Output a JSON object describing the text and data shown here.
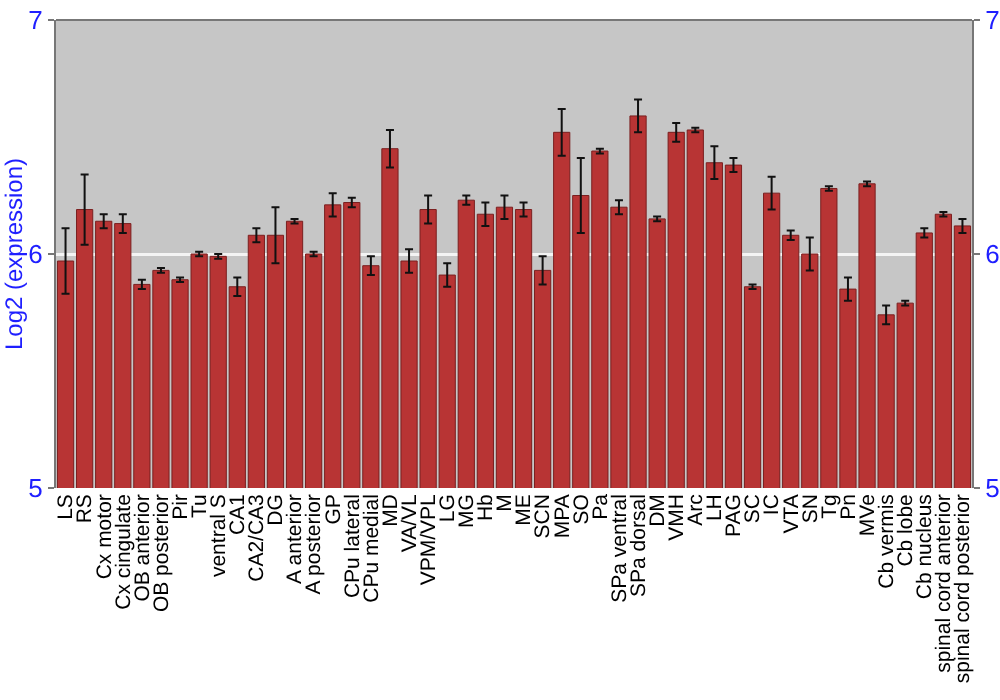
{
  "chart_data": {
    "type": "bar",
    "ylabel": "Log2 (expression)",
    "categories": [
      "LS",
      "RS",
      "Cx motor",
      "Cx cingulate",
      "OB anterior",
      "OB posterior",
      "Pir",
      "Tu",
      "ventral S",
      "CA1",
      "CA2/CA3",
      "DG",
      "A anterior",
      "A posterior",
      "GP",
      "CPu lateral",
      "CPu medial",
      "MD",
      "VA/VL",
      "VPM/VPL",
      "LG",
      "MG",
      "Hb",
      "M",
      "ME",
      "SCN",
      "MPA",
      "SO",
      "Pa",
      "SPa ventral",
      "SPa dorsal",
      "DM",
      "VMH",
      "Arc",
      "LH",
      "PAG",
      "SC",
      "IC",
      "VTA",
      "SN",
      "Tg",
      "Pn",
      "MVe",
      "Cb vermis",
      "Cb lobe",
      "Cb nucleus",
      "spinal cord anterior",
      "spinal cord posterior"
    ],
    "values": [
      5.97,
      6.19,
      6.14,
      6.13,
      5.87,
      5.93,
      5.89,
      6.0,
      5.99,
      5.86,
      6.08,
      6.08,
      6.14,
      6.0,
      6.21,
      6.22,
      5.95,
      6.45,
      5.97,
      6.19,
      5.91,
      6.23,
      6.17,
      6.2,
      6.19,
      5.93,
      6.52,
      6.25,
      6.44,
      6.2,
      6.59,
      6.15,
      6.52,
      6.53,
      6.39,
      6.38,
      5.86,
      6.26,
      6.08,
      6.0,
      6.28,
      5.85,
      6.3,
      5.74,
      5.79,
      6.09,
      6.17,
      6.12
    ],
    "errors": [
      0.14,
      0.15,
      0.03,
      0.04,
      0.02,
      0.01,
      0.01,
      0.01,
      0.01,
      0.04,
      0.03,
      0.12,
      0.01,
      0.01,
      0.05,
      0.02,
      0.04,
      0.08,
      0.05,
      0.06,
      0.05,
      0.02,
      0.05,
      0.05,
      0.03,
      0.06,
      0.1,
      0.16,
      0.01,
      0.03,
      0.07,
      0.01,
      0.04,
      0.01,
      0.07,
      0.03,
      0.01,
      0.07,
      0.02,
      0.07,
      0.01,
      0.05,
      0.01,
      0.04,
      0.01,
      0.02,
      0.01,
      0.03
    ],
    "color": "#b83434",
    "ylim": [
      5,
      7
    ],
    "yticks": [
      5,
      6,
      7
    ],
    "y2lim": [
      5,
      7
    ],
    "y2ticks": [
      5,
      6,
      7
    ],
    "grid": "y"
  }
}
